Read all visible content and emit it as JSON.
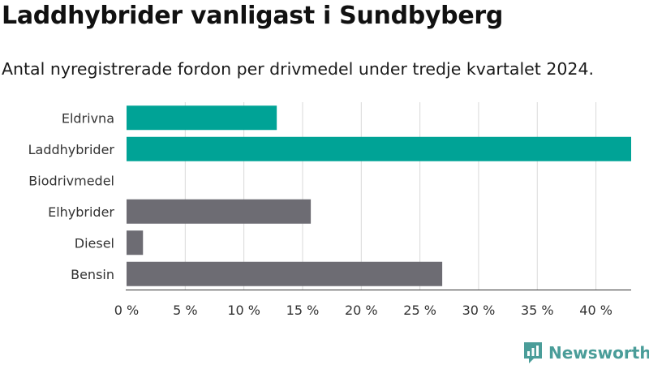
{
  "title": "Laddhybrider vanligast i Sundbyberg",
  "subtitle": "Antal nyregistrerade fordon per drivmedel under tredje kvartalet 2024.",
  "brand": "Newsworthy",
  "colors": {
    "highlight": "#00a396",
    "default": "#6d6c73",
    "grid": "#d9d9d9",
    "axis": "#333333",
    "brand": "#4a9d99"
  },
  "chart_data": {
    "type": "bar",
    "orientation": "horizontal",
    "categories": [
      "Eldrivna",
      "Laddhybrider",
      "Biodrivmedel",
      "Elhybrider",
      "Diesel",
      "Bensin"
    ],
    "values": [
      12.8,
      43,
      0,
      15.7,
      1.4,
      26.9
    ],
    "highlight": [
      true,
      true,
      false,
      false,
      false,
      false
    ],
    "xticks": [
      0,
      5,
      10,
      15,
      20,
      25,
      30,
      35,
      40
    ],
    "xtick_labels": [
      "0 %",
      "5 %",
      "10 %",
      "15 %",
      "20 %",
      "25 %",
      "30 %",
      "35 %",
      "40 %"
    ],
    "xlim": [
      0,
      43
    ],
    "grid": true,
    "title": "Laddhybrider vanligast i Sundbyberg",
    "subtitle": "Antal nyregistrerade fordon per drivmedel under tredje kvartalet 2024."
  }
}
